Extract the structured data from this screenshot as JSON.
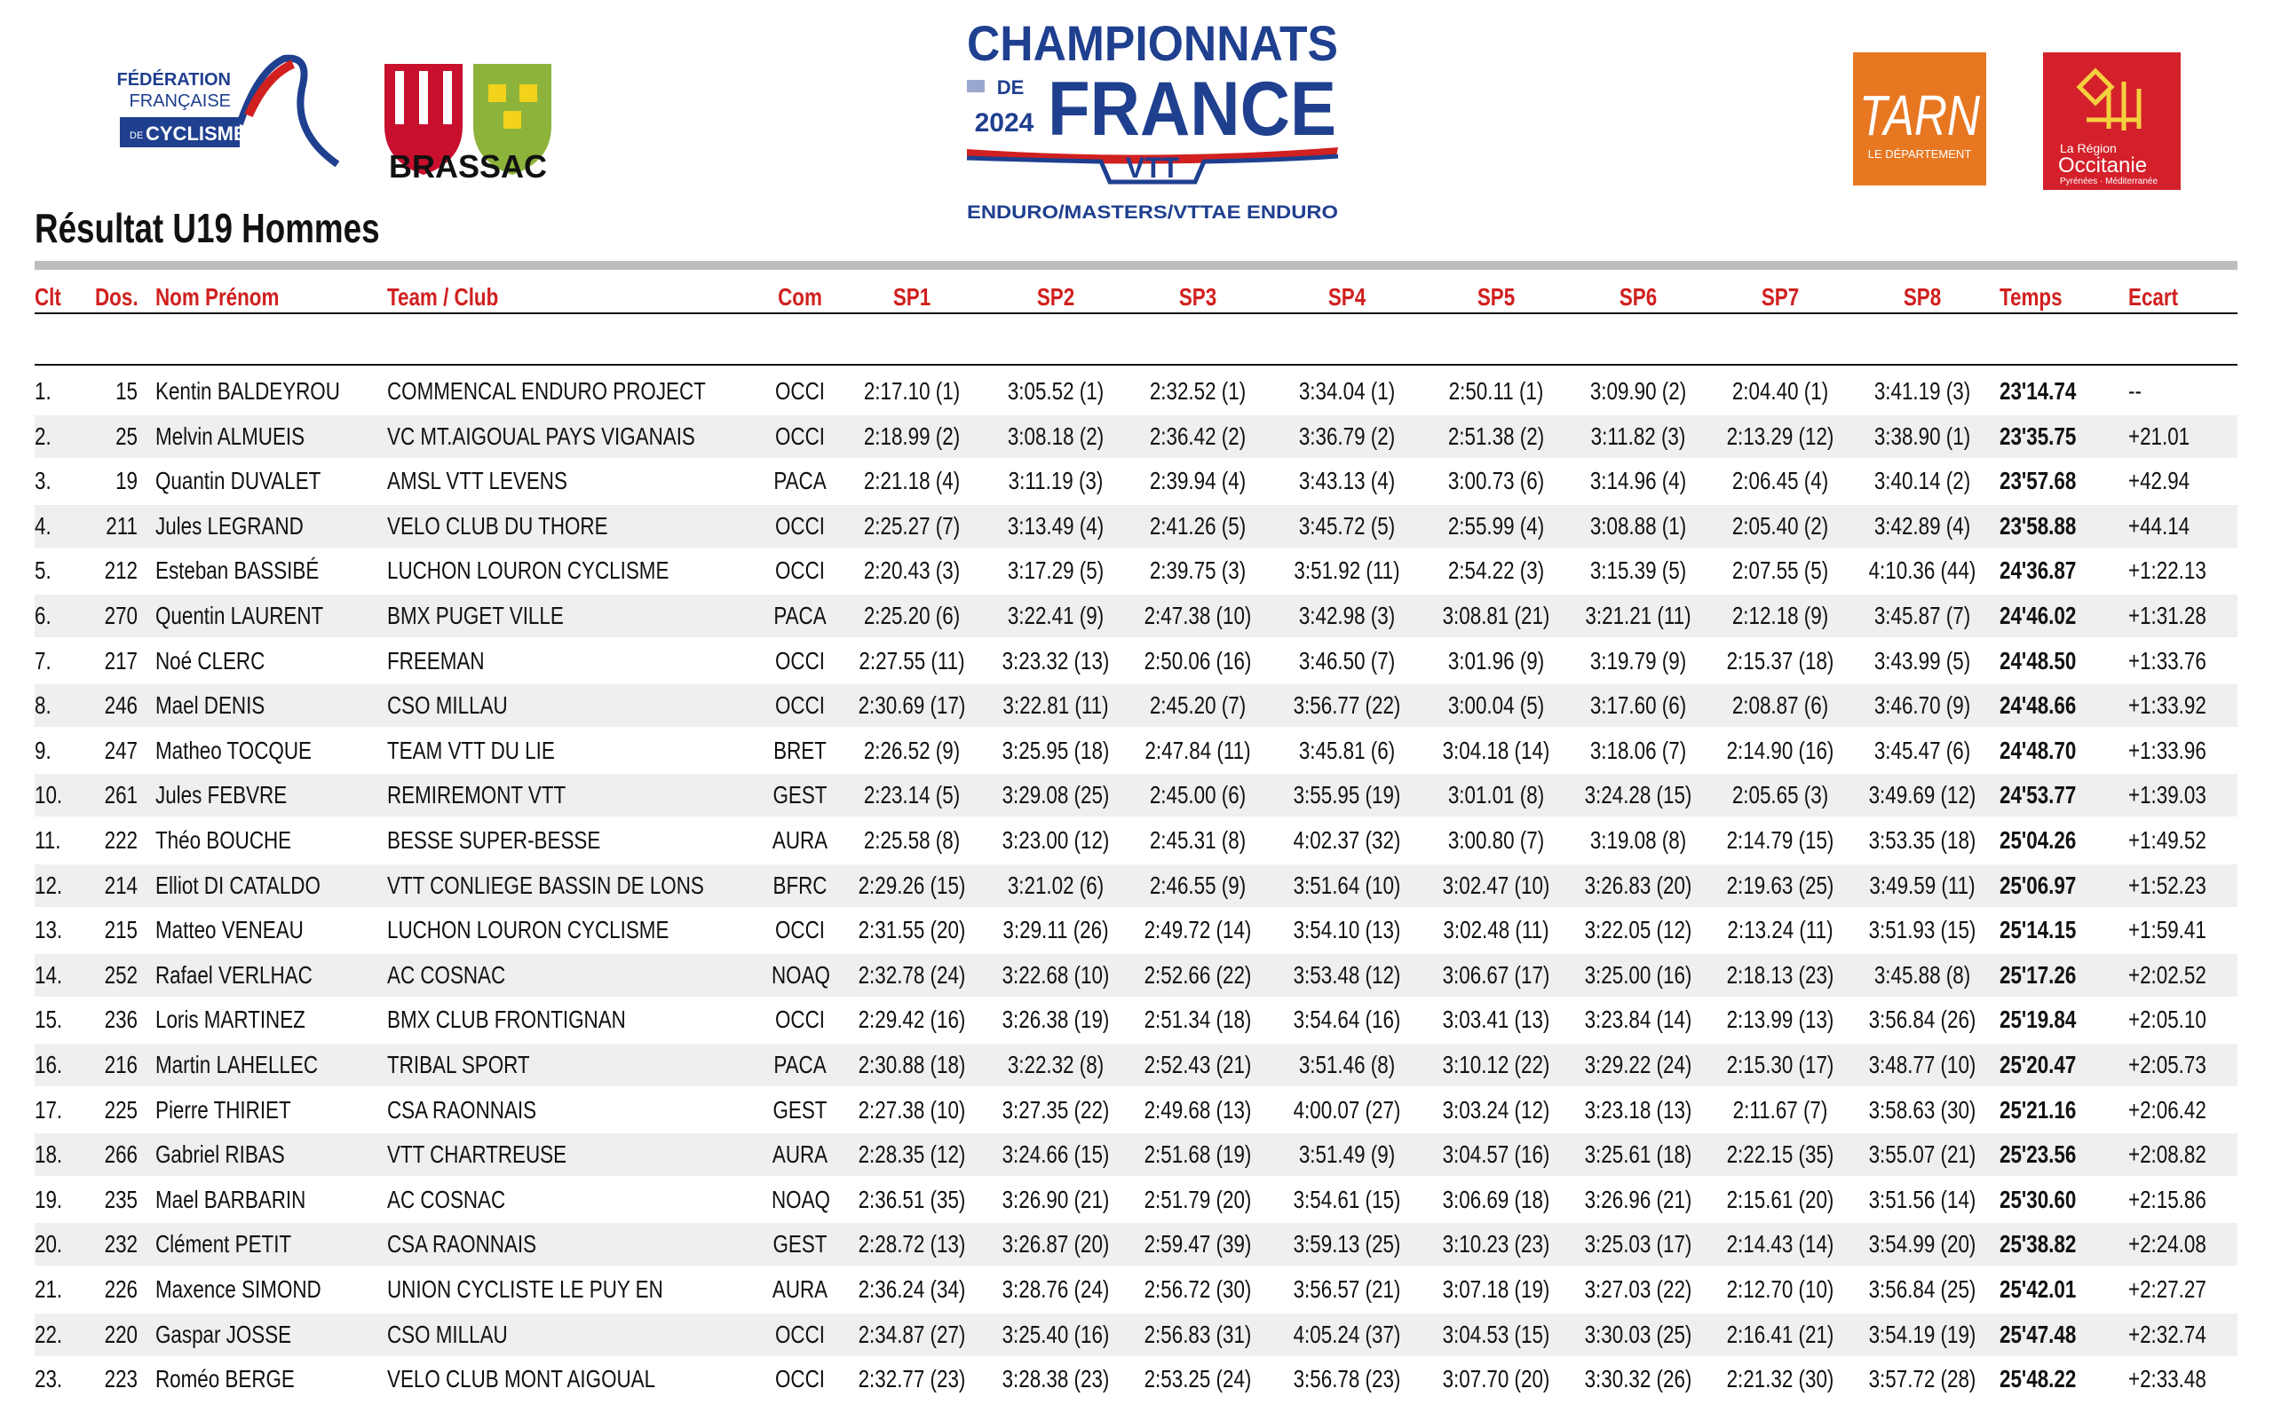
{
  "header": {
    "ffc": [
      "FÉDÉRATION",
      "FRANÇAISE",
      "DE",
      "CYCLISME"
    ],
    "brassac": "BRASSAC",
    "event": {
      "line1": "CHAMPIONNATS",
      "de": "DE",
      "year": "2024",
      "line2": "FRANCE",
      "vtt": "VTT",
      "subtitle": "ENDURO/MASTERS/VTTAE ENDURO"
    },
    "tarn": {
      "name": "TARN",
      "sub": "LE DÉPARTEMENT"
    },
    "occitanie": {
      "pre": "La Région",
      "name": "Occitanie",
      "sub": "Pyrénées · Méditerranée"
    }
  },
  "title": "Résultat U19 Hommes",
  "table": {
    "columns": [
      "Clt",
      "Dos.",
      "Nom Prénom",
      "Team / Club",
      "Com",
      "SP1",
      "SP2",
      "SP3",
      "SP4",
      "SP5",
      "SP6",
      "SP7",
      "SP8",
      "Temps",
      "Ecart"
    ],
    "rows": [
      [
        "1.",
        "15",
        "Kentin BALDEYROU",
        "COMMENCAL ENDURO PROJECT",
        "OCCI",
        "2:17.10 (1)",
        "3:05.52 (1)",
        "2:32.52 (1)",
        "3:34.04 (1)",
        "2:50.11 (1)",
        "3:09.90 (2)",
        "2:04.40 (1)",
        "3:41.19 (3)",
        "23'14.74",
        "--"
      ],
      [
        "2.",
        "25",
        "Melvin ALMUEIS",
        "VC MT.AIGOUAL PAYS VIGANAIS",
        "OCCI",
        "2:18.99 (2)",
        "3:08.18 (2)",
        "2:36.42 (2)",
        "3:36.79 (2)",
        "2:51.38 (2)",
        "3:11.82 (3)",
        "2:13.29 (12)",
        "3:38.90 (1)",
        "23'35.75",
        "+21.01"
      ],
      [
        "3.",
        "19",
        "Quantin DUVALET",
        "AMSL VTT LEVENS",
        "PACA",
        "2:21.18 (4)",
        "3:11.19 (3)",
        "2:39.94 (4)",
        "3:43.13 (4)",
        "3:00.73 (6)",
        "3:14.96 (4)",
        "2:06.45 (4)",
        "3:40.14 (2)",
        "23'57.68",
        "+42.94"
      ],
      [
        "4.",
        "211",
        "Jules LEGRAND",
        "VELO CLUB DU THORE",
        "OCCI",
        "2:25.27 (7)",
        "3:13.49 (4)",
        "2:41.26 (5)",
        "3:45.72 (5)",
        "2:55.99 (4)",
        "3:08.88 (1)",
        "2:05.40 (2)",
        "3:42.89 (4)",
        "23'58.88",
        "+44.14"
      ],
      [
        "5.",
        "212",
        "Esteban BASSIBÉ",
        "LUCHON LOURON CYCLISME",
        "OCCI",
        "2:20.43 (3)",
        "3:17.29 (5)",
        "2:39.75 (3)",
        "3:51.92 (11)",
        "2:54.22 (3)",
        "3:15.39 (5)",
        "2:07.55 (5)",
        "4:10.36 (44)",
        "24'36.87",
        "+1:22.13"
      ],
      [
        "6.",
        "270",
        "Quentin LAURENT",
        "BMX PUGET VILLE",
        "PACA",
        "2:25.20 (6)",
        "3:22.41 (9)",
        "2:47.38 (10)",
        "3:42.98 (3)",
        "3:08.81 (21)",
        "3:21.21 (11)",
        "2:12.18 (9)",
        "3:45.87 (7)",
        "24'46.02",
        "+1:31.28"
      ],
      [
        "7.",
        "217",
        "Noé CLERC",
        "FREEMAN",
        "OCCI",
        "2:27.55 (11)",
        "3:23.32 (13)",
        "2:50.06 (16)",
        "3:46.50 (7)",
        "3:01.96 (9)",
        "3:19.79 (9)",
        "2:15.37 (18)",
        "3:43.99 (5)",
        "24'48.50",
        "+1:33.76"
      ],
      [
        "8.",
        "246",
        "Mael DENIS",
        "CSO MILLAU",
        "OCCI",
        "2:30.69 (17)",
        "3:22.81 (11)",
        "2:45.20 (7)",
        "3:56.77 (22)",
        "3:00.04 (5)",
        "3:17.60 (6)",
        "2:08.87 (6)",
        "3:46.70 (9)",
        "24'48.66",
        "+1:33.92"
      ],
      [
        "9.",
        "247",
        "Matheo TOCQUE",
        "TEAM VTT DU LIE",
        "BRET",
        "2:26.52 (9)",
        "3:25.95 (18)",
        "2:47.84 (11)",
        "3:45.81 (6)",
        "3:04.18 (14)",
        "3:18.06 (7)",
        "2:14.90 (16)",
        "3:45.47 (6)",
        "24'48.70",
        "+1:33.96"
      ],
      [
        "10.",
        "261",
        "Jules FEBVRE",
        "REMIREMONT VTT",
        "GEST",
        "2:23.14 (5)",
        "3:29.08 (25)",
        "2:45.00 (6)",
        "3:55.95 (19)",
        "3:01.01 (8)",
        "3:24.28 (15)",
        "2:05.65 (3)",
        "3:49.69 (12)",
        "24'53.77",
        "+1:39.03"
      ],
      [
        "11.",
        "222",
        "Théo BOUCHE",
        "BESSE SUPER-BESSE",
        "AURA",
        "2:25.58 (8)",
        "3:23.00 (12)",
        "2:45.31 (8)",
        "4:02.37 (32)",
        "3:00.80 (7)",
        "3:19.08 (8)",
        "2:14.79 (15)",
        "3:53.35 (18)",
        "25'04.26",
        "+1:49.52"
      ],
      [
        "12.",
        "214",
        "Elliot DI CATALDO",
        "VTT CONLIEGE BASSIN DE LONS",
        "BFRC",
        "2:29.26 (15)",
        "3:21.02 (6)",
        "2:46.55 (9)",
        "3:51.64 (10)",
        "3:02.47 (10)",
        "3:26.83 (20)",
        "2:19.63 (25)",
        "3:49.59 (11)",
        "25'06.97",
        "+1:52.23"
      ],
      [
        "13.",
        "215",
        "Matteo VENEAU",
        "LUCHON LOURON CYCLISME",
        "OCCI",
        "2:31.55 (20)",
        "3:29.11 (26)",
        "2:49.72 (14)",
        "3:54.10 (13)",
        "3:02.48 (11)",
        "3:22.05 (12)",
        "2:13.24 (11)",
        "3:51.93 (15)",
        "25'14.15",
        "+1:59.41"
      ],
      [
        "14.",
        "252",
        "Rafael VERLHAC",
        "AC COSNAC",
        "NOAQ",
        "2:32.78 (24)",
        "3:22.68 (10)",
        "2:52.66 (22)",
        "3:53.48 (12)",
        "3:06.67 (17)",
        "3:25.00 (16)",
        "2:18.13 (23)",
        "3:45.88 (8)",
        "25'17.26",
        "+2:02.52"
      ],
      [
        "15.",
        "236",
        "Loris MARTINEZ",
        "BMX CLUB FRONTIGNAN",
        "OCCI",
        "2:29.42 (16)",
        "3:26.38 (19)",
        "2:51.34 (18)",
        "3:54.64 (16)",
        "3:03.41 (13)",
        "3:23.84 (14)",
        "2:13.99 (13)",
        "3:56.84 (26)",
        "25'19.84",
        "+2:05.10"
      ],
      [
        "16.",
        "216",
        "Martin LAHELLEC",
        "TRIBAL SPORT",
        "PACA",
        "2:30.88 (18)",
        "3:22.32 (8)",
        "2:52.43 (21)",
        "3:51.46 (8)",
        "3:10.12 (22)",
        "3:29.22 (24)",
        "2:15.30 (17)",
        "3:48.77 (10)",
        "25'20.47",
        "+2:05.73"
      ],
      [
        "17.",
        "225",
        "Pierre THIRIET",
        "CSA RAONNAIS",
        "GEST",
        "2:27.38 (10)",
        "3:27.35 (22)",
        "2:49.68 (13)",
        "4:00.07 (27)",
        "3:03.24 (12)",
        "3:23.18 (13)",
        "2:11.67 (7)",
        "3:58.63 (30)",
        "25'21.16",
        "+2:06.42"
      ],
      [
        "18.",
        "266",
        "Gabriel RIBAS",
        "VTT CHARTREUSE",
        "AURA",
        "2:28.35 (12)",
        "3:24.66 (15)",
        "2:51.68 (19)",
        "3:51.49 (9)",
        "3:04.57 (16)",
        "3:25.61 (18)",
        "2:22.15 (35)",
        "3:55.07 (21)",
        "25'23.56",
        "+2:08.82"
      ],
      [
        "19.",
        "235",
        "Mael BARBARIN",
        "AC COSNAC",
        "NOAQ",
        "2:36.51 (35)",
        "3:26.90 (21)",
        "2:51.79 (20)",
        "3:54.61 (15)",
        "3:06.69 (18)",
        "3:26.96 (21)",
        "2:15.61 (20)",
        "3:51.56 (14)",
        "25'30.60",
        "+2:15.86"
      ],
      [
        "20.",
        "232",
        "Clément PETIT",
        "CSA RAONNAIS",
        "GEST",
        "2:28.72 (13)",
        "3:26.87 (20)",
        "2:59.47 (39)",
        "3:59.13 (25)",
        "3:10.23 (23)",
        "3:25.03 (17)",
        "2:14.43 (14)",
        "3:54.99 (20)",
        "25'38.82",
        "+2:24.08"
      ],
      [
        "21.",
        "226",
        "Maxence SIMOND",
        "UNION CYCLISTE LE PUY EN",
        "AURA",
        "2:36.24 (34)",
        "3:28.76 (24)",
        "2:56.72 (30)",
        "3:56.57 (21)",
        "3:07.18 (19)",
        "3:27.03 (22)",
        "2:12.70 (10)",
        "3:56.84 (25)",
        "25'42.01",
        "+2:27.27"
      ],
      [
        "22.",
        "220",
        "Gaspar JOSSE",
        "CSO MILLAU",
        "OCCI",
        "2:34.87 (27)",
        "3:25.40 (16)",
        "2:56.83 (31)",
        "4:05.24 (37)",
        "3:04.53 (15)",
        "3:30.03 (25)",
        "2:16.41 (21)",
        "3:54.19 (19)",
        "25'47.48",
        "+2:32.74"
      ],
      [
        "23.",
        "223",
        "Roméo BERGE",
        "VELO CLUB MONT AIGOUAL",
        "OCCI",
        "2:32.77 (23)",
        "3:28.38 (23)",
        "2:53.25 (24)",
        "3:56.78 (23)",
        "3:07.70 (20)",
        "3:30.32 (26)",
        "2:21.32 (30)",
        "3:57.72 (28)",
        "25'48.22",
        "+2:33.48"
      ]
    ]
  }
}
